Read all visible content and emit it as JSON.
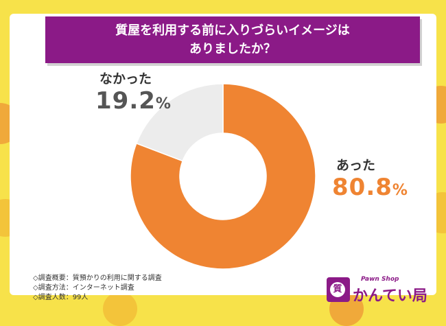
{
  "title": {
    "line1": "質屋を利用する前に入りづらいイメージは",
    "line2": "ありましたか？"
  },
  "chart_data": {
    "type": "pie",
    "categories": [
      "あった",
      "なかった"
    ],
    "values": [
      80.8,
      19.2
    ],
    "value_labels": [
      "80.8",
      "19.2"
    ],
    "unit": "%",
    "colors": [
      "#ef8432",
      "#ececec"
    ],
    "value_colors": [
      "#ef8432",
      "#555555"
    ],
    "donut": true
  },
  "notes": [
    "◇調査概要：質預かりの利用に関する調査",
    "◇調査方法：インターネット調査",
    "◇調査人数：99人"
  ],
  "logo": {
    "subtitle": "Pawn Shop",
    "name": "かんてい局",
    "mark": "質"
  },
  "colors": {
    "brand_purple": "#8b1a87",
    "accent_orange": "#ef8432",
    "background_yellow": "#f7e24a"
  }
}
